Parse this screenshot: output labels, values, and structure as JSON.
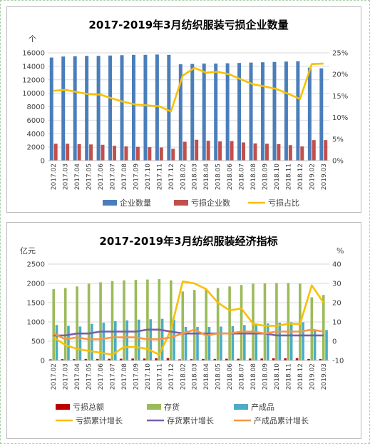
{
  "chart_data": [
    {
      "type": "bar",
      "title": "2017-2019年3月纺织服装亏损企业数量",
      "y_unit": "个",
      "ylim": [
        0,
        16000
      ],
      "yticks": [
        0,
        2000,
        4000,
        6000,
        8000,
        10000,
        12000,
        14000,
        16000
      ],
      "y2lim": [
        0,
        25
      ],
      "y2ticks": [
        "0%",
        "5%",
        "10%",
        "15%",
        "20%",
        "25%"
      ],
      "categories": [
        "2017.02",
        "2017.03",
        "2017.04",
        "2017.05",
        "2017.06",
        "2017.07",
        "2017.08",
        "2017.09",
        "2017.10",
        "2017.11",
        "2017.12",
        "2018.02",
        "2018.03",
        "2018.04",
        "2018.05",
        "2018.06",
        "2018.07",
        "2018.08",
        "2018.09",
        "2018.10",
        "2018.11",
        "2018.12",
        "2019.02",
        "2019.03"
      ],
      "series": [
        {
          "name": "企业数量",
          "kind": "bar",
          "axis": "left",
          "color": "#4a7ebb",
          "values": [
            15300,
            15450,
            15500,
            15550,
            15550,
            15600,
            15650,
            15700,
            15700,
            15750,
            15700,
            14300,
            14350,
            14400,
            14400,
            14450,
            14500,
            14550,
            14600,
            14650,
            14700,
            14750,
            13800,
            13700
          ]
        },
        {
          "name": "亏损企业数",
          "kind": "bar",
          "axis": "left",
          "color": "#c0504d",
          "values": [
            2500,
            2500,
            2450,
            2400,
            2350,
            2200,
            2100,
            2050,
            2000,
            1950,
            1750,
            2800,
            3100,
            2950,
            2850,
            2900,
            2700,
            2550,
            2500,
            2450,
            2300,
            2100,
            3050,
            3050
          ]
        },
        {
          "name": "亏损占比",
          "kind": "line",
          "axis": "right",
          "color": "#f8c000",
          "values": [
            16.2,
            16.4,
            15.9,
            15.4,
            15.3,
            14.4,
            13.6,
            13.0,
            12.8,
            12.6,
            11.4,
            19.7,
            21.5,
            20.4,
            20.6,
            20.0,
            18.8,
            17.7,
            17.2,
            16.6,
            15.5,
            14.3,
            22.4,
            22.5
          ]
        }
      ],
      "legend": "bottom"
    },
    {
      "type": "bar",
      "title": "2017-2019年3月纺织服装经济指标",
      "y_unit": "亿元",
      "ylim": [
        0,
        2500
      ],
      "yticks": [
        0,
        500,
        1000,
        1500,
        2000,
        2500
      ],
      "y2_unit": "%",
      "y2lim": [
        -10,
        40
      ],
      "y2ticks": [
        -10,
        0,
        10,
        20,
        30,
        40
      ],
      "categories": [
        "2017.02",
        "2017.03",
        "2017.04",
        "2017.05",
        "2017.06",
        "2017.07",
        "2017.08",
        "2017.09",
        "2017.10",
        "2017.11",
        "2017.12",
        "2018.02",
        "2018.03",
        "2018.04",
        "2018.05",
        "2018.06",
        "2018.07",
        "2018.08",
        "2018.09",
        "2018.10",
        "2018.11",
        "2018.12",
        "2019.02",
        "2019.03"
      ],
      "series": [
        {
          "name": "亏损总额",
          "kind": "bar",
          "axis": "left",
          "color": "#c00000",
          "values": [
            30,
            35,
            35,
            40,
            40,
            45,
            45,
            50,
            50,
            55,
            60,
            30,
            35,
            40,
            40,
            45,
            45,
            50,
            50,
            55,
            55,
            60,
            40,
            40
          ]
        },
        {
          "name": "存货",
          "kind": "bar",
          "axis": "left",
          "color": "#9bbb59",
          "values": [
            1850,
            1880,
            1920,
            1990,
            2030,
            2060,
            2080,
            2090,
            2100,
            2110,
            2080,
            1790,
            1830,
            1860,
            1880,
            1920,
            1960,
            1990,
            2000,
            2010,
            2010,
            1990,
            1640,
            1700
          ]
        },
        {
          "name": "产成品",
          "kind": "bar",
          "axis": "left",
          "color": "#4bacc6",
          "values": [
            920,
            900,
            880,
            950,
            980,
            1020,
            1040,
            1060,
            1070,
            1080,
            1060,
            870,
            870,
            870,
            880,
            890,
            920,
            940,
            960,
            980,
            990,
            990,
            780,
            790
          ]
        },
        {
          "name": "亏损累计增长",
          "kind": "line",
          "axis": "right",
          "color": "#f8c000",
          "values": [
            2,
            -2,
            -4,
            -5,
            -6,
            -7,
            -3,
            -3,
            -4,
            -7,
            6,
            31,
            30,
            27,
            20,
            16,
            17,
            9,
            8,
            8,
            9,
            9,
            29,
            20
          ]
        },
        {
          "name": "存货累计增长",
          "kind": "line",
          "axis": "right",
          "color": "#7b5ea7",
          "values": [
            3,
            3,
            4,
            4,
            5,
            5,
            5,
            5,
            6,
            6,
            5,
            4,
            4,
            4,
            4,
            4,
            4,
            4,
            4,
            3,
            3,
            3,
            3,
            3
          ]
        },
        {
          "name": "产成品累计增长",
          "kind": "line",
          "axis": "right",
          "color": "#f79646",
          "values": [
            4,
            1,
            2,
            1,
            1,
            2,
            2,
            2,
            1,
            1,
            2,
            4,
            6,
            3,
            4,
            4,
            5,
            5,
            4,
            5,
            5,
            5,
            6,
            5
          ]
        }
      ],
      "legend": "bottom"
    }
  ]
}
